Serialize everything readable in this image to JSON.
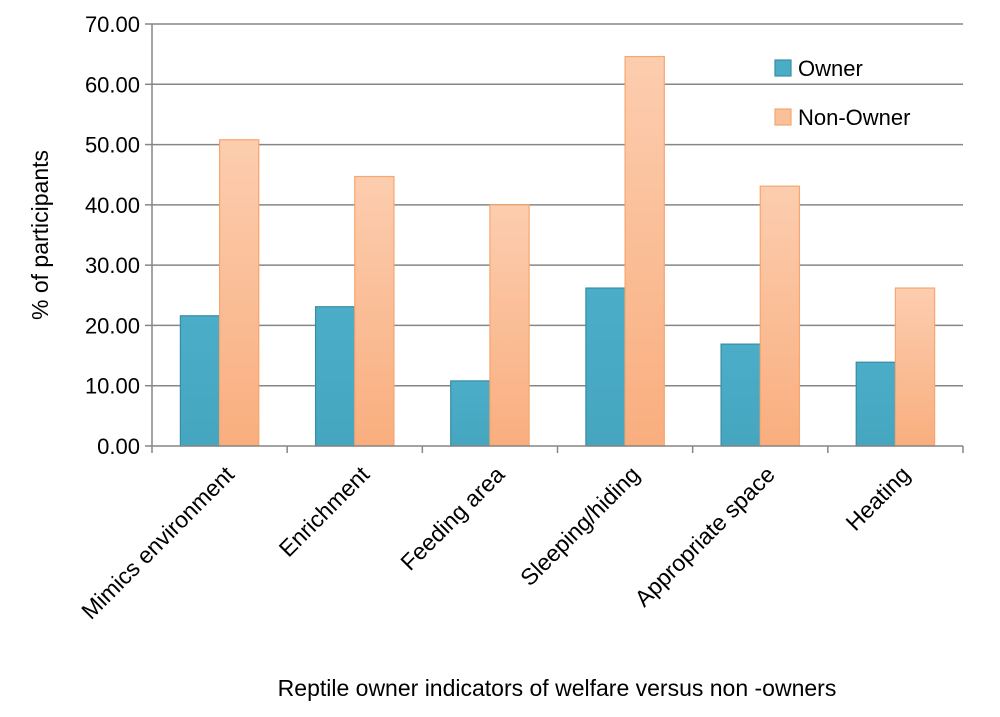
{
  "chart_data": {
    "type": "bar",
    "title": "",
    "xlabel": "Reptile owner indicators of welfare versus non -owners",
    "ylabel": "% of participants",
    "ylim": [
      0,
      70
    ],
    "yticks": [
      "0.00",
      "10.00",
      "20.00",
      "30.00",
      "40.00",
      "50.00",
      "60.00",
      "70.00"
    ],
    "grid": true,
    "legend_position": "top-right",
    "categories": [
      "Mimics environment",
      "Enrichment",
      "Feeding area",
      "Sleeping/hiding",
      "Appropriate space",
      "Heating"
    ],
    "series": [
      {
        "name": "Owner",
        "values": [
          21.6,
          23.1,
          10.8,
          26.2,
          16.9,
          13.9
        ],
        "color": "#4BACC6"
      },
      {
        "name": "Non-Owner",
        "values": [
          50.8,
          44.7,
          40.0,
          64.6,
          43.1,
          26.2
        ],
        "color": "#F9B98F"
      }
    ]
  }
}
